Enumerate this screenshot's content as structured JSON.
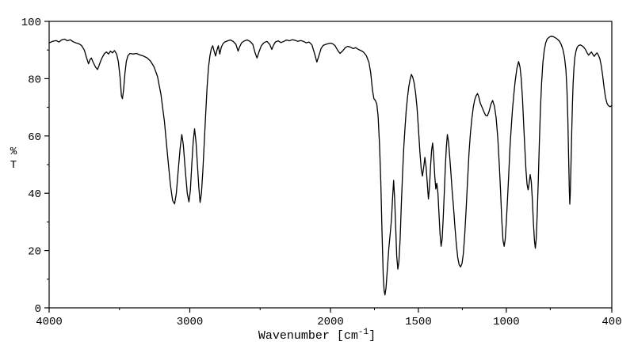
{
  "chart_data": {
    "type": "line",
    "title": "",
    "ylabel": "%T",
    "xlabel_prefix": "Wavenumber [cm",
    "xlabel_sup": "-1",
    "xlabel_suffix": "]",
    "x_range": [
      4000,
      400
    ],
    "x_break": 2000,
    "x_axis_note": "reversed wavenumber axis; 4000-2000 occupies left half, 2000-400 right half",
    "ylim": [
      0,
      100
    ],
    "grid": false,
    "legend": "none",
    "x_ticks": [
      {
        "value": 4000,
        "label": "4000"
      },
      {
        "value": 3000,
        "label": "3000"
      },
      {
        "value": 2000,
        "label": "2000"
      },
      {
        "value": 1500,
        "label": "1500"
      },
      {
        "value": 1000,
        "label": "1000"
      },
      {
        "value": 400,
        "label": "400"
      }
    ],
    "x_minor_ticks": [
      3500,
      2500,
      1750,
      1250,
      750
    ],
    "y_ticks": [
      {
        "value": 100,
        "label": "100"
      },
      {
        "value": 80,
        "label": "80"
      },
      {
        "value": 60,
        "label": "60"
      },
      {
        "value": 40,
        "label": "40"
      },
      {
        "value": 20,
        "label": "20"
      },
      {
        "value": 0,
        "label": "0"
      }
    ],
    "y_minor_ticks": [
      90,
      70,
      50,
      30,
      10
    ],
    "colors": {
      "line": "#000000",
      "frame": "#000000",
      "text": "#000000",
      "background": "#ffffff"
    },
    "points": [
      [
        4000,
        92.5
      ],
      [
        3975,
        93
      ],
      [
        3950,
        93.3
      ],
      [
        3930,
        92.8
      ],
      [
        3910,
        93.6
      ],
      [
        3890,
        93.8
      ],
      [
        3870,
        93.2
      ],
      [
        3850,
        93.6
      ],
      [
        3830,
        92.9
      ],
      [
        3810,
        92.5
      ],
      [
        3790,
        92.2
      ],
      [
        3770,
        91.6
      ],
      [
        3750,
        90
      ],
      [
        3735,
        87.5
      ],
      [
        3720,
        85.2
      ],
      [
        3710,
        86.6
      ],
      [
        3700,
        87.2
      ],
      [
        3688,
        85.8
      ],
      [
        3670,
        84
      ],
      [
        3656,
        83.2
      ],
      [
        3645,
        84.6
      ],
      [
        3633,
        86.2
      ],
      [
        3620,
        87.6
      ],
      [
        3606,
        88.8
      ],
      [
        3592,
        89.3
      ],
      [
        3578,
        88.6
      ],
      [
        3564,
        89.6
      ],
      [
        3550,
        89
      ],
      [
        3536,
        89.8
      ],
      [
        3520,
        88.6
      ],
      [
        3508,
        86
      ],
      [
        3496,
        80.5
      ],
      [
        3486,
        74
      ],
      [
        3479,
        73
      ],
      [
        3471,
        76
      ],
      [
        3461,
        82
      ],
      [
        3451,
        86
      ],
      [
        3440,
        88
      ],
      [
        3426,
        88.8
      ],
      [
        3405,
        88.6
      ],
      [
        3380,
        88.8
      ],
      [
        3355,
        88.3
      ],
      [
        3330,
        87.9
      ],
      [
        3305,
        87.3
      ],
      [
        3280,
        86.2
      ],
      [
        3255,
        84.2
      ],
      [
        3230,
        80.8
      ],
      [
        3205,
        74.5
      ],
      [
        3180,
        65
      ],
      [
        3158,
        53
      ],
      [
        3138,
        43
      ],
      [
        3122,
        37.5
      ],
      [
        3108,
        36.3
      ],
      [
        3096,
        40
      ],
      [
        3082,
        48
      ],
      [
        3068,
        56
      ],
      [
        3057,
        60.5
      ],
      [
        3046,
        57
      ],
      [
        3032,
        48
      ],
      [
        3018,
        40
      ],
      [
        3006,
        37
      ],
      [
        2996,
        41
      ],
      [
        2986,
        50
      ],
      [
        2976,
        58
      ],
      [
        2966,
        62.5
      ],
      [
        2956,
        58
      ],
      [
        2946,
        50
      ],
      [
        2936,
        42
      ],
      [
        2927,
        36.8
      ],
      [
        2917,
        40
      ],
      [
        2907,
        48
      ],
      [
        2897,
        58
      ],
      [
        2887,
        68
      ],
      [
        2877,
        77
      ],
      [
        2867,
        84
      ],
      [
        2857,
        88
      ],
      [
        2847,
        90.5
      ],
      [
        2837,
        91.5
      ],
      [
        2827,
        89.6
      ],
      [
        2817,
        87.9
      ],
      [
        2807,
        90
      ],
      [
        2797,
        91.5
      ],
      [
        2787,
        88.6
      ],
      [
        2777,
        90.8
      ],
      [
        2767,
        92
      ],
      [
        2752,
        92.8
      ],
      [
        2732,
        93.2
      ],
      [
        2712,
        93.5
      ],
      [
        2692,
        93
      ],
      [
        2672,
        92
      ],
      [
        2657,
        89.6
      ],
      [
        2647,
        91
      ],
      [
        2632,
        92.5
      ],
      [
        2612,
        93.2
      ],
      [
        2592,
        93.5
      ],
      [
        2572,
        93
      ],
      [
        2552,
        92
      ],
      [
        2537,
        89.2
      ],
      [
        2522,
        87.2
      ],
      [
        2507,
        89.5
      ],
      [
        2492,
        91.5
      ],
      [
        2472,
        92.6
      ],
      [
        2452,
        93
      ],
      [
        2432,
        92
      ],
      [
        2417,
        90.2
      ],
      [
        2407,
        91.5
      ],
      [
        2392,
        92.8
      ],
      [
        2372,
        93.2
      ],
      [
        2352,
        92.6
      ],
      [
        2332,
        93
      ],
      [
        2312,
        93.5
      ],
      [
        2292,
        93.2
      ],
      [
        2272,
        93.6
      ],
      [
        2252,
        93.4
      ],
      [
        2232,
        93
      ],
      [
        2212,
        93.3
      ],
      [
        2192,
        93
      ],
      [
        2172,
        92.5
      ],
      [
        2152,
        92.8
      ],
      [
        2132,
        91.8
      ],
      [
        2112,
        88.6
      ],
      [
        2097,
        85.8
      ],
      [
        2082,
        88
      ],
      [
        2067,
        90.5
      ],
      [
        2052,
        91.6
      ],
      [
        2032,
        92
      ],
      [
        2012,
        92.3
      ],
      [
        2000,
        92.4
      ],
      [
        1988,
        92.2
      ],
      [
        1974,
        91.5
      ],
      [
        1960,
        90
      ],
      [
        1946,
        88.8
      ],
      [
        1932,
        89.6
      ],
      [
        1916,
        90.8
      ],
      [
        1902,
        91.3
      ],
      [
        1886,
        91
      ],
      [
        1871,
        90.5
      ],
      [
        1856,
        90.8
      ],
      [
        1841,
        90.2
      ],
      [
        1826,
        89.8
      ],
      [
        1811,
        89.2
      ],
      [
        1796,
        88
      ],
      [
        1781,
        85.6
      ],
      [
        1771,
        82
      ],
      [
        1761,
        76
      ],
      [
        1753,
        73
      ],
      [
        1745,
        72.4
      ],
      [
        1737,
        71.2
      ],
      [
        1729,
        67
      ],
      [
        1721,
        57
      ],
      [
        1714,
        44
      ],
      [
        1707,
        27
      ],
      [
        1700,
        11
      ],
      [
        1695,
        6
      ],
      [
        1690,
        4.5
      ],
      [
        1684,
        7
      ],
      [
        1676,
        14
      ],
      [
        1668,
        21
      ],
      [
        1660,
        26
      ],
      [
        1653,
        31
      ],
      [
        1647,
        38
      ],
      [
        1641,
        44.5
      ],
      [
        1635,
        38
      ],
      [
        1629,
        28
      ],
      [
        1623,
        18
      ],
      [
        1617,
        13.5
      ],
      [
        1611,
        16
      ],
      [
        1604,
        24
      ],
      [
        1597,
        36
      ],
      [
        1590,
        47
      ],
      [
        1583,
        56
      ],
      [
        1576,
        63
      ],
      [
        1569,
        69
      ],
      [
        1562,
        73.5
      ],
      [
        1555,
        77
      ],
      [
        1548,
        79.5
      ],
      [
        1540,
        81.5
      ],
      [
        1532,
        80.5
      ],
      [
        1524,
        78.5
      ],
      [
        1516,
        75
      ],
      [
        1508,
        70
      ],
      [
        1500,
        63
      ],
      [
        1492,
        55
      ],
      [
        1484,
        48.5
      ],
      [
        1477,
        46
      ],
      [
        1470,
        49
      ],
      [
        1463,
        52.5
      ],
      [
        1456,
        49
      ],
      [
        1449,
        43
      ],
      [
        1443,
        38
      ],
      [
        1437,
        42
      ],
      [
        1431,
        49
      ],
      [
        1425,
        55
      ],
      [
        1419,
        57.5
      ],
      [
        1413,
        53
      ],
      [
        1407,
        46
      ],
      [
        1401,
        41.5
      ],
      [
        1395,
        43.5
      ],
      [
        1389,
        40
      ],
      [
        1383,
        33
      ],
      [
        1377,
        26
      ],
      [
        1371,
        21.5
      ],
      [
        1365,
        24
      ],
      [
        1359,
        31
      ],
      [
        1353,
        40
      ],
      [
        1347,
        49
      ],
      [
        1341,
        56
      ],
      [
        1335,
        60.5
      ],
      [
        1329,
        58
      ],
      [
        1322,
        53
      ],
      [
        1315,
        47
      ],
      [
        1308,
        41
      ],
      [
        1300,
        35
      ],
      [
        1292,
        28
      ],
      [
        1284,
        22
      ],
      [
        1276,
        17.5
      ],
      [
        1268,
        15
      ],
      [
        1260,
        14.3
      ],
      [
        1252,
        15.5
      ],
      [
        1244,
        19
      ],
      [
        1236,
        26
      ],
      [
        1228,
        35
      ],
      [
        1220,
        45
      ],
      [
        1212,
        54
      ],
      [
        1204,
        61
      ],
      [
        1196,
        66
      ],
      [
        1188,
        70
      ],
      [
        1180,
        72.5
      ],
      [
        1172,
        74
      ],
      [
        1164,
        74.8
      ],
      [
        1156,
        73.5
      ],
      [
        1148,
        71.5
      ],
      [
        1138,
        70
      ],
      [
        1128,
        68.5
      ],
      [
        1118,
        67.2
      ],
      [
        1108,
        67
      ],
      [
        1098,
        68.5
      ],
      [
        1088,
        71
      ],
      [
        1078,
        72.4
      ],
      [
        1068,
        70.5
      ],
      [
        1058,
        66.5
      ],
      [
        1048,
        59
      ],
      [
        1040,
        50
      ],
      [
        1033,
        41
      ],
      [
        1026,
        31
      ],
      [
        1019,
        23.5
      ],
      [
        1012,
        21.5
      ],
      [
        1006,
        24
      ],
      [
        1000,
        30
      ],
      [
        993,
        38
      ],
      [
        986,
        47
      ],
      [
        979,
        56
      ],
      [
        972,
        63
      ],
      [
        965,
        69
      ],
      [
        958,
        74
      ],
      [
        950,
        79
      ],
      [
        940,
        83.5
      ],
      [
        930,
        86
      ],
      [
        922,
        84
      ],
      [
        915,
        80
      ],
      [
        908,
        73
      ],
      [
        901,
        64
      ],
      [
        894,
        55
      ],
      [
        888,
        48
      ],
      [
        882,
        43
      ],
      [
        876,
        41.2
      ],
      [
        870,
        43.5
      ],
      [
        864,
        46.5
      ],
      [
        858,
        44
      ],
      [
        852,
        38
      ],
      [
        846,
        30
      ],
      [
        840,
        23.5
      ],
      [
        835,
        20.8
      ],
      [
        830,
        24
      ],
      [
        824,
        33
      ],
      [
        818,
        45
      ],
      [
        812,
        58
      ],
      [
        806,
        69
      ],
      [
        800,
        78
      ],
      [
        792,
        85.5
      ],
      [
        784,
        90
      ],
      [
        776,
        92.5
      ],
      [
        768,
        93.8
      ],
      [
        758,
        94.4
      ],
      [
        746,
        94.8
      ],
      [
        734,
        94.7
      ],
      [
        722,
        94.3
      ],
      [
        710,
        93.8
      ],
      [
        698,
        93.1
      ],
      [
        688,
        92
      ],
      [
        678,
        90.2
      ],
      [
        669,
        87.5
      ],
      [
        661,
        83
      ],
      [
        655,
        76
      ],
      [
        650,
        66
      ],
      [
        646,
        54
      ],
      [
        642,
        42
      ],
      [
        639,
        36.2
      ],
      [
        636,
        40
      ],
      [
        632,
        50
      ],
      [
        628,
        61
      ],
      [
        624,
        71
      ],
      [
        620,
        78.5
      ],
      [
        615,
        84
      ],
      [
        610,
        87.5
      ],
      [
        604,
        89.5
      ],
      [
        598,
        90.8
      ],
      [
        590,
        91.5
      ],
      [
        580,
        91.8
      ],
      [
        570,
        91.5
      ],
      [
        560,
        91
      ],
      [
        550,
        90.2
      ],
      [
        540,
        89
      ],
      [
        532,
        88.2
      ],
      [
        524,
        88.8
      ],
      [
        516,
        89.3
      ],
      [
        508,
        88.5
      ],
      [
        500,
        87.8
      ],
      [
        492,
        88.5
      ],
      [
        484,
        89
      ],
      [
        476,
        88.2
      ],
      [
        468,
        87
      ],
      [
        460,
        84.5
      ],
      [
        452,
        81
      ],
      [
        444,
        77
      ],
      [
        436,
        73.5
      ],
      [
        428,
        71.5
      ],
      [
        420,
        70.6
      ],
      [
        410,
        70.2
      ],
      [
        400,
        70.6
      ]
    ]
  }
}
